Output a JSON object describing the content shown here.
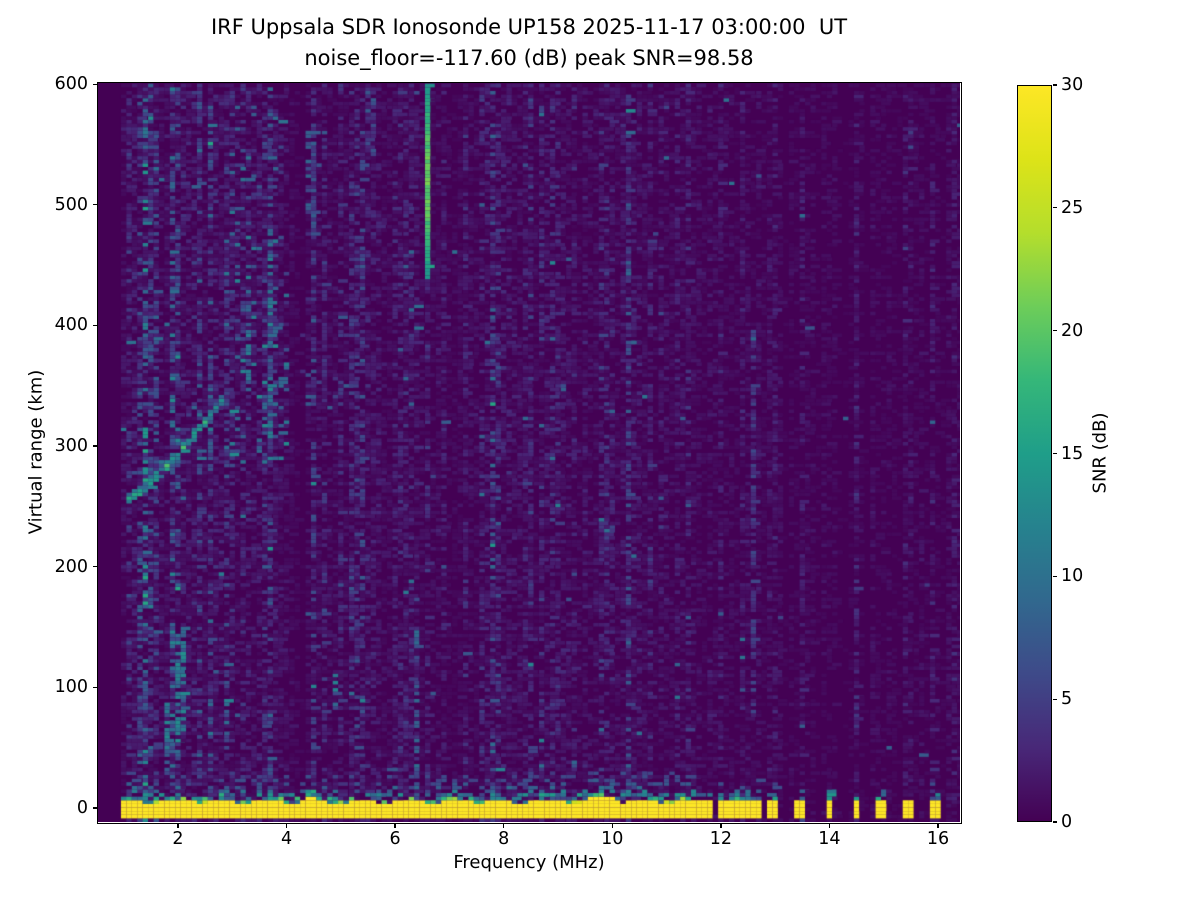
{
  "figure": {
    "title_line1": "IRF Uppsala SDR Ionosonde UP158 2025-11-17 03:00:00  UT",
    "title_line2": "noise_floor=-117.60 (dB) peak SNR=98.58",
    "background_color": "#ffffff"
  },
  "chart_data": {
    "type": "heatmap",
    "title": "IRF Uppsala SDR Ionosonde UP158 2025-11-17 03:00:00  UT",
    "subtitle": "noise_floor=-117.60 (dB) peak SNR=98.58",
    "station": "UP158",
    "timestamp_ut": "2025-11-17 03:00:00",
    "noise_floor_db": -117.6,
    "peak_snr_db": 98.58,
    "xlabel": "Frequency (MHz)",
    "ylabel": "Virtual range (km)",
    "xlim": [
      0.527,
      16.405
    ],
    "ylim": [
      -11.6,
      601
    ],
    "x_ticks": [
      2,
      4,
      6,
      8,
      10,
      12,
      14,
      16
    ],
    "y_ticks": [
      0,
      100,
      200,
      300,
      400,
      500,
      600
    ],
    "grid": false,
    "colorbar": {
      "label": "SNR (dB)",
      "min": 0,
      "max": 30,
      "ticks": [
        0,
        5,
        10,
        15,
        20,
        25,
        30
      ]
    },
    "colormap": {
      "name": "viridis",
      "stops": [
        "#440154",
        "#482878",
        "#3e4a89",
        "#31688e",
        "#26828e",
        "#1f9e89",
        "#35b779",
        "#6dcd59",
        "#b4de2c",
        "#dde318",
        "#fde725"
      ]
    },
    "bins": {
      "f_start_mhz": 0.95,
      "f_step_mhz": 0.1,
      "r_step_km": 3
    },
    "features": {
      "ground_band": {
        "f_start": 1.0,
        "f_end": 11.65,
        "r_center_km": 0,
        "r_halfwidth_km": 5.5,
        "snr": 30,
        "fringe_top_km": 24,
        "fringe_bottom_km": 9,
        "bumps": [
          {
            "f0": 9.5,
            "f1": 10.15,
            "extra_km": 3.5
          },
          {
            "f0": 4.38,
            "f1": 4.58,
            "extra_km": 3
          }
        ]
      },
      "pulse_bars": {
        "frequencies": [
          11.78,
          11.97,
          12.16,
          12.35,
          12.54,
          12.72,
          12.95,
          13.46,
          13.98,
          14.48,
          14.95,
          15.45,
          15.95
        ],
        "f_halfwidth": 0.065,
        "r_center_km": 0,
        "r_halfwidth_km": 6.5,
        "snr": 30,
        "fringe_top_km": 22
      },
      "echo_trace": {
        "f_start": 1.07,
        "r_start_km": 256,
        "f_end": 2.85,
        "r_end_km": 340,
        "width_km": 10,
        "snr_min": 9,
        "snr_max": 19
      },
      "spread_clusters": [
        {
          "f0": 2.85,
          "f1": 4.05,
          "r0": 285,
          "r1": 450,
          "density": 0.2,
          "snr_min": 3,
          "snr_max": 13
        },
        {
          "f0": 3.0,
          "f1": 3.95,
          "r0": 450,
          "r1": 590,
          "density": 0.11,
          "snr_min": 3,
          "snr_max": 11
        },
        {
          "f0": 4.3,
          "f1": 5.2,
          "r0": 330,
          "r1": 430,
          "density": 0.08,
          "snr_min": 3,
          "snr_max": 9
        }
      ],
      "vertical_streaks": [
        {
          "f": 6.62,
          "r0": 437,
          "r1": 601,
          "snr_min": 10,
          "snr_max": 22,
          "solid": true
        },
        {
          "f": 6.38,
          "r0": -8,
          "r1": 150,
          "snr_min": 4,
          "snr_max": 10,
          "solid": false
        },
        {
          "f": 2.05,
          "r0": 55,
          "r1": 150,
          "snr_min": 6,
          "snr_max": 14,
          "solid": false
        },
        {
          "f": 1.82,
          "r0": 30,
          "r1": 90,
          "snr_min": 6,
          "snr_max": 13,
          "solid": false
        },
        {
          "f": 2.92,
          "r0": 58,
          "r1": 96,
          "snr_min": 5,
          "snr_max": 12,
          "solid": false
        },
        {
          "f": 4.92,
          "r0": 78,
          "r1": 110,
          "snr_min": 5,
          "snr_max": 12,
          "solid": false
        },
        {
          "f": 1.28,
          "r0": 138,
          "r1": 170,
          "snr_min": 5,
          "snr_max": 11,
          "solid": false
        },
        {
          "f": 12.57,
          "r0": 75,
          "r1": 400,
          "snr_min": 2,
          "snr_max": 6,
          "solid": false
        },
        {
          "f": 4.45,
          "r0": 470,
          "r1": 560,
          "snr_min": 3,
          "snr_max": 9,
          "solid": false
        },
        {
          "f": 5.55,
          "r0": 540,
          "r1": 601,
          "snr_min": 3,
          "snr_max": 8,
          "solid": false
        },
        {
          "f": 3.3,
          "r0": 320,
          "r1": 430,
          "snr_min": 4,
          "snr_max": 12,
          "solid": false
        },
        {
          "f": 3.72,
          "r0": 300,
          "r1": 480,
          "snr_min": 4,
          "snr_max": 13,
          "solid": false
        }
      ],
      "noise_model": {
        "activity_anchors": [
          [
            1.0,
            0.62
          ],
          [
            2.2,
            0.62
          ],
          [
            6.5,
            0.42
          ],
          [
            11.65,
            0.3
          ],
          [
            11.75,
            0.13
          ],
          [
            16.4,
            0.13
          ]
        ],
        "base_scale": 7.5,
        "noise_cap_snr": 16,
        "boost_columns_left": [
          1.35,
          1.62,
          1.95,
          2.3,
          2.62,
          3.0,
          3.3,
          3.72,
          4.1,
          4.5,
          5.0,
          5.55,
          6.1,
          6.62,
          7.2,
          7.8,
          8.4,
          9.0,
          9.7,
          10.3,
          11.0,
          11.35
        ],
        "boost_factor_left": 1.8,
        "boost_columns_right": [
          11.78,
          11.97,
          12.16,
          12.35,
          12.54,
          12.72,
          12.95,
          13.46,
          13.98,
          14.48,
          14.95,
          15.45,
          15.95,
          12.1,
          13.55,
          16.2,
          16.3
        ],
        "boost_factor_right": 2.4,
        "quiet_columns": [
          4.2,
          7.1
        ]
      }
    }
  }
}
